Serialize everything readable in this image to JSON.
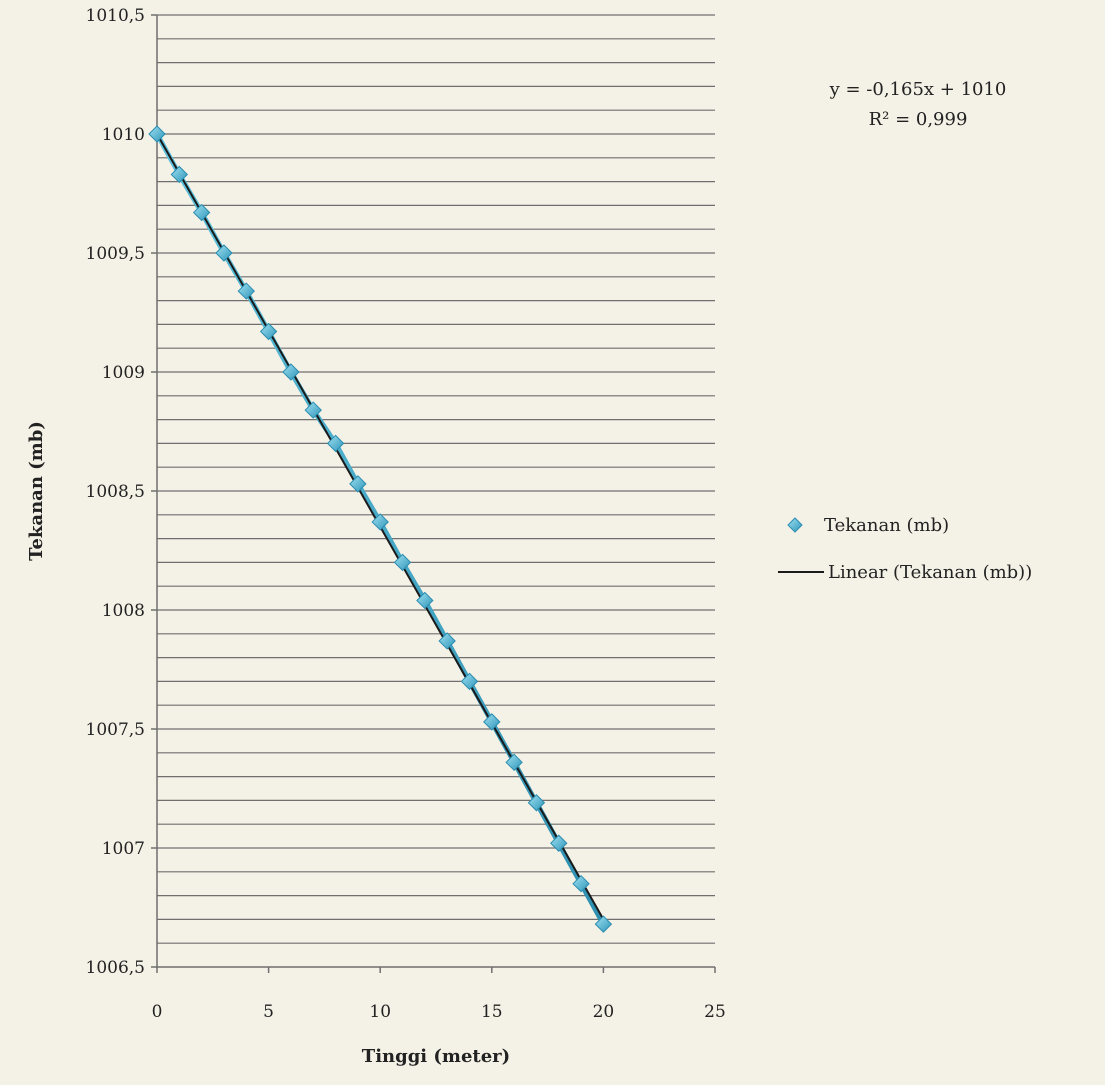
{
  "chart_data": {
    "type": "line",
    "xlabel": "Tinggi (meter)",
    "ylabel": "Tekanan (mb)",
    "xlim": [
      0,
      25
    ],
    "ylim": [
      1006.5,
      1010.5
    ],
    "x_ticks": [
      0,
      5,
      10,
      15,
      20,
      25
    ],
    "x_tick_labels": [
      "0",
      "5",
      "10",
      "15",
      "20",
      "25"
    ],
    "y_ticks": [
      1006.5,
      1007,
      1007.5,
      1008,
      1008.5,
      1009,
      1009.5,
      1010,
      1010.5
    ],
    "y_tick_labels": [
      "1006,5",
      "1007",
      "1007,5",
      "1008",
      "1008,5",
      "1009",
      "1009,5",
      "1010",
      "1010,5"
    ],
    "grid": true,
    "legend_position": "right",
    "series": [
      {
        "name": "Tekanan (mb)",
        "color": "#4bacc6",
        "marker_color": "#4bacc6",
        "marker": "diamond",
        "x": [
          0,
          1,
          2,
          3,
          4,
          5,
          6,
          7,
          8,
          9,
          10,
          11,
          12,
          13,
          14,
          15,
          16,
          17,
          18,
          19,
          20
        ],
        "values": [
          1010.0,
          1009.83,
          1009.67,
          1009.5,
          1009.34,
          1009.17,
          1009.0,
          1008.84,
          1008.7,
          1008.53,
          1008.37,
          1008.2,
          1008.04,
          1007.87,
          1007.7,
          1007.53,
          1007.36,
          1007.19,
          1007.02,
          1006.85,
          1006.68
        ]
      },
      {
        "name": "Linear (Tekanan (mb))",
        "color": "#1a1a1a",
        "trendline": true,
        "slope": -0.165,
        "intercept": 1010
      }
    ],
    "annotations": {
      "equation": "y = -0,165x + 1010",
      "r_squared": "R² = 0,999"
    }
  }
}
